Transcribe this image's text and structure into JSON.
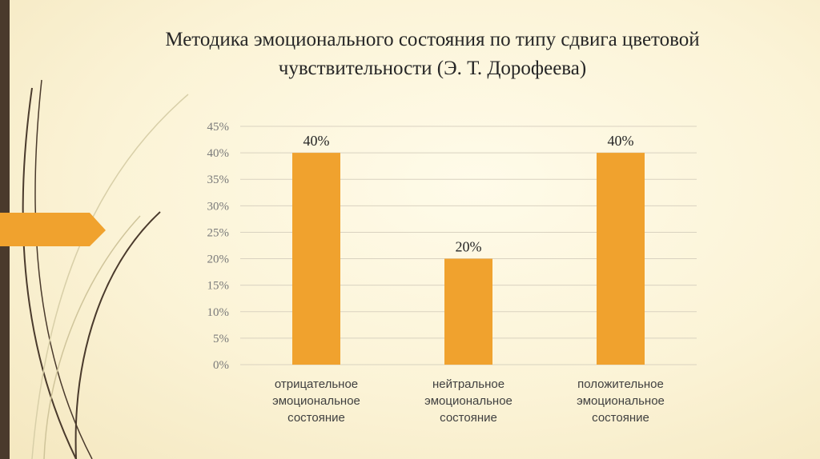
{
  "slide": {
    "title_line1": "Методика эмоционального состояния по типу сдвига цветовой",
    "title_line2": "чувствительности (Э. Т. Дорофеева)"
  },
  "colors": {
    "bar": "#f0a22e",
    "arrow": "#f0a22e",
    "left_bar": "#4a3a2c",
    "grid": "#d9d2c0"
  },
  "chart_data": {
    "type": "bar",
    "categories": [
      [
        "отрицательное",
        "эмоциональное",
        "состояние"
      ],
      [
        "нейтральное",
        "эмоциональное",
        "состояние"
      ],
      [
        "положительное",
        "эмоциональное",
        "состояние"
      ]
    ],
    "values": [
      40,
      20,
      40
    ],
    "data_labels": [
      "40%",
      "20%",
      "40%"
    ],
    "y_ticks": [
      "0%",
      "5%",
      "10%",
      "15%",
      "20%",
      "25%",
      "30%",
      "35%",
      "40%",
      "45%"
    ],
    "ylim": [
      0,
      45
    ],
    "grid": true,
    "legend": "none"
  }
}
